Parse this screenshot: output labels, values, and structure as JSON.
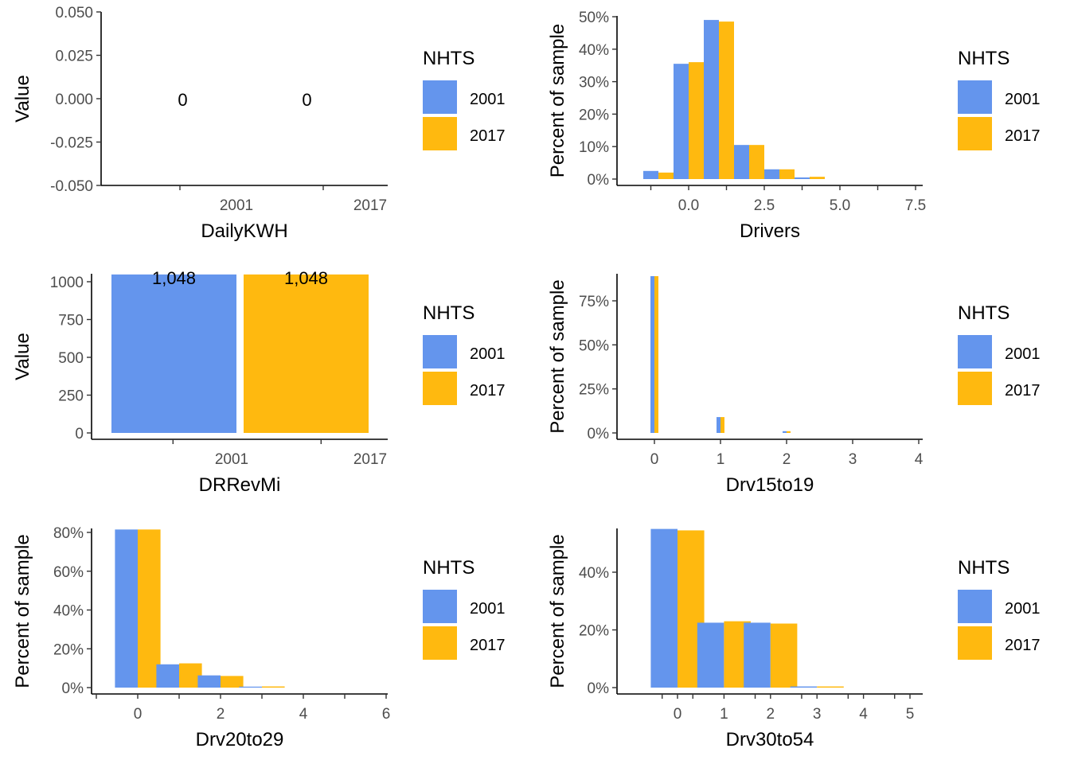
{
  "colors": {
    "2001": "#6495ED",
    "2017": "#FFB90F"
  },
  "legend": {
    "title": "NHTS",
    "labels": [
      "2001",
      "2017"
    ]
  },
  "chart_data": [
    {
      "type": "bar",
      "variant": "value-labels",
      "xlabel": "DailyKWH",
      "ylabel": "Value",
      "categories": [
        "2001",
        "2017"
      ],
      "values": [
        0,
        0
      ],
      "data_labels": [
        "0",
        "0"
      ],
      "ylim": [
        -0.05,
        0.05
      ],
      "yticks": [
        -0.05,
        -0.025,
        0,
        0.025,
        0.05
      ],
      "ytick_labels": [
        "-0.050",
        "-0.025",
        "0.000",
        "0.025",
        "0.050"
      ],
      "legend_position": "right"
    },
    {
      "type": "bar",
      "variant": "histogram",
      "xlabel": "Drivers",
      "ylabel": "Percent of sample",
      "x": [
        -1,
        0,
        1,
        2,
        3,
        4
      ],
      "bin_width": 1,
      "series": [
        {
          "name": "2001",
          "values": [
            2.5,
            35.5,
            49,
            10.5,
            3,
            0.5
          ]
        },
        {
          "name": "2017",
          "values": [
            2,
            36,
            48.5,
            10.5,
            3,
            0.7
          ]
        }
      ],
      "xlim": [
        -2.2,
        7.7
      ],
      "xticks": [
        -1.25,
        0,
        1.25,
        2.5,
        3.75,
        5,
        6.25,
        7.5
      ],
      "xtick_labels": [
        "",
        "0.0",
        "",
        "2.5",
        "",
        "5.0",
        "",
        "7.5"
      ],
      "ylim": [
        0,
        50
      ],
      "yticks": [
        0,
        10,
        20,
        30,
        40,
        50
      ],
      "ytick_labels": [
        "0%",
        "10%",
        "20%",
        "30%",
        "40%",
        "50%"
      ],
      "legend_position": "right"
    },
    {
      "type": "bar",
      "variant": "value-labels",
      "xlabel": "DRRevMi",
      "ylabel": "Value",
      "categories": [
        "2001",
        "2017"
      ],
      "values": [
        1048,
        1048
      ],
      "data_labels": [
        "1,048",
        "1,048"
      ],
      "ylim": [
        0,
        1048
      ],
      "yticks": [
        0,
        250,
        500,
        750,
        1000
      ],
      "ytick_labels": [
        "0",
        "250",
        "500",
        "750",
        "1000"
      ],
      "legend_position": "right"
    },
    {
      "type": "bar",
      "variant": "histogram",
      "xlabel": "Drv15to19",
      "ylabel": "Percent of sample",
      "x": [
        0,
        1,
        2
      ],
      "bin_width": 0.12,
      "series": [
        {
          "name": "2001",
          "values": [
            89,
            9,
            1
          ]
        },
        {
          "name": "2017",
          "values": [
            89,
            9,
            1
          ]
        }
      ],
      "xlim": [
        -0.3,
        4.0
      ],
      "xticks": [
        0,
        1,
        2,
        3,
        4
      ],
      "xtick_labels": [
        "0",
        "1",
        "2",
        "3",
        "4"
      ],
      "ylim": [
        0,
        93
      ],
      "yticks": [
        0,
        25,
        50,
        75
      ],
      "ytick_labels": [
        "0%",
        "25%",
        "50%",
        "75%"
      ],
      "legend_position": "right"
    },
    {
      "type": "bar",
      "variant": "histogram",
      "xlabel": "Drv20to29",
      "ylabel": "Percent of sample",
      "x": [
        0,
        1,
        2,
        3
      ],
      "bin_width": 1.1,
      "series": [
        {
          "name": "2001",
          "values": [
            81.5,
            12,
            6.3,
            0.5
          ]
        },
        {
          "name": "2017",
          "values": [
            81.5,
            12.5,
            6,
            0.6
          ]
        }
      ],
      "xlim": [
        -1.2,
        6.0
      ],
      "xticks": [
        -1,
        0,
        1,
        2,
        3,
        4,
        5,
        6
      ],
      "xtick_labels": [
        "",
        "0",
        "",
        "2",
        "",
        "4",
        "",
        "6"
      ],
      "ylim": [
        0,
        85
      ],
      "yticks": [
        0,
        20,
        40,
        60,
        80
      ],
      "ytick_labels": [
        "0%",
        "20%",
        "40%",
        "60%",
        "80%"
      ],
      "legend_position": "right"
    },
    {
      "type": "bar",
      "variant": "histogram",
      "xlabel": "Drv30to54",
      "ylabel": "Percent of sample",
      "x": [
        0,
        1,
        2,
        3
      ],
      "bin_width": 1.15,
      "series": [
        {
          "name": "2001",
          "values": [
            55,
            22.5,
            22.5,
            0.4
          ]
        },
        {
          "name": "2017",
          "values": [
            54.5,
            23,
            22.2,
            0.4
          ]
        }
      ],
      "xlim": [
        -0.9,
        5.2
      ],
      "xticks": [
        -0.33,
        0,
        0.33,
        1,
        1.67,
        2,
        2.67,
        3,
        3.67,
        4,
        4.67,
        5
      ],
      "xtick_labels": [
        "",
        "0",
        "",
        "1",
        "",
        "2",
        "",
        "3",
        "",
        "4",
        "",
        "5"
      ],
      "ylim": [
        0,
        57
      ],
      "yticks": [
        0,
        20,
        40
      ],
      "ytick_labels": [
        "0%",
        "20%",
        "40%"
      ],
      "legend_position": "right"
    }
  ]
}
